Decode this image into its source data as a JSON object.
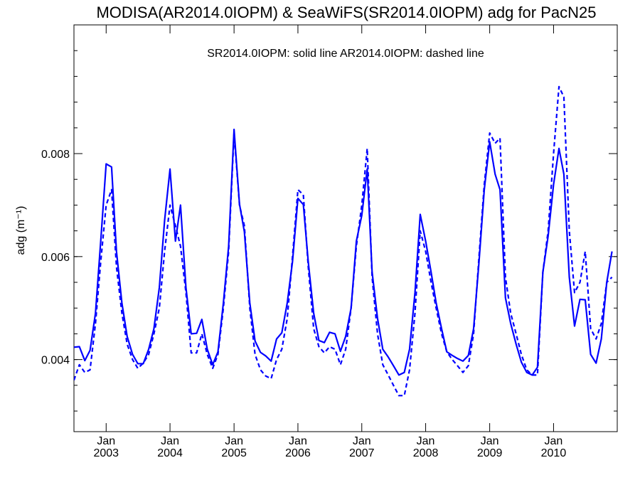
{
  "chart_data": {
    "type": "line",
    "title": "MODISA(AR2014.0IOPM) & SeaWiFS(SR2014.0IOPM)  adg for PacN25",
    "annotation": "SR2014.0IOPM: solid line   AR2014.0IOPM: dashed line",
    "ylabel": "adg (m⁻¹)",
    "xlabel": "",
    "xlim": [
      "2002-07-01",
      "2010-12-31"
    ],
    "ylim": [
      0.0026,
      0.0105
    ],
    "y_ticks": [
      {
        "value": 0.004,
        "label": "0.004"
      },
      {
        "value": 0.006,
        "label": "0.006"
      },
      {
        "value": 0.008,
        "label": "0.008"
      }
    ],
    "x_ticks": [
      {
        "date": "2003-01-01",
        "month": "Jan",
        "year": "2003"
      },
      {
        "date": "2004-01-01",
        "month": "Jan",
        "year": "2004"
      },
      {
        "date": "2005-01-01",
        "month": "Jan",
        "year": "2005"
      },
      {
        "date": "2006-01-01",
        "month": "Jan",
        "year": "2006"
      },
      {
        "date": "2007-01-01",
        "month": "Jan",
        "year": "2007"
      },
      {
        "date": "2008-01-01",
        "month": "Jan",
        "year": "2008"
      },
      {
        "date": "2009-01-01",
        "month": "Jan",
        "year": "2009"
      },
      {
        "date": "2010-01-01",
        "month": "Jan",
        "year": "2010"
      }
    ],
    "grid": false,
    "series": [
      {
        "name": "SR2014.0IOPM",
        "style": "solid",
        "color": "#0000ff",
        "points": [
          [
            "2002-07-01",
            0.00424
          ],
          [
            "2002-08-01",
            0.00425
          ],
          [
            "2002-09-01",
            0.00398
          ],
          [
            "2002-10-01",
            0.00418
          ],
          [
            "2002-11-01",
            0.0049
          ],
          [
            "2002-12-01",
            0.0063
          ],
          [
            "2003-01-01",
            0.0078
          ],
          [
            "2003-02-01",
            0.00774
          ],
          [
            "2003-03-01",
            0.0061
          ],
          [
            "2003-04-01",
            0.0051
          ],
          [
            "2003-05-01",
            0.00445
          ],
          [
            "2003-06-01",
            0.0041
          ],
          [
            "2003-07-01",
            0.00392
          ],
          [
            "2003-08-01",
            0.00392
          ],
          [
            "2003-09-01",
            0.0042
          ],
          [
            "2003-10-01",
            0.0046
          ],
          [
            "2003-11-01",
            0.0054
          ],
          [
            "2003-12-01",
            0.0067
          ],
          [
            "2004-01-01",
            0.0077
          ],
          [
            "2004-02-01",
            0.0063
          ],
          [
            "2004-03-01",
            0.007
          ],
          [
            "2004-04-01",
            0.0054
          ],
          [
            "2004-05-01",
            0.0045
          ],
          [
            "2004-06-01",
            0.00451
          ],
          [
            "2004-07-01",
            0.00478
          ],
          [
            "2004-08-01",
            0.0042
          ],
          [
            "2004-09-01",
            0.0039
          ],
          [
            "2004-10-01",
            0.00415
          ],
          [
            "2004-11-01",
            0.0051
          ],
          [
            "2004-12-01",
            0.0062
          ],
          [
            "2005-01-01",
            0.00847
          ],
          [
            "2005-02-01",
            0.00702
          ],
          [
            "2005-03-01",
            0.00648
          ],
          [
            "2005-04-01",
            0.0051
          ],
          [
            "2005-05-01",
            0.00436
          ],
          [
            "2005-06-01",
            0.00414
          ],
          [
            "2005-07-01",
            0.00407
          ],
          [
            "2005-08-01",
            0.00397
          ],
          [
            "2005-09-01",
            0.0044
          ],
          [
            "2005-10-01",
            0.00452
          ],
          [
            "2005-11-01",
            0.0051
          ],
          [
            "2005-12-01",
            0.0059
          ],
          [
            "2006-01-01",
            0.00713
          ],
          [
            "2006-02-01",
            0.00701
          ],
          [
            "2006-03-01",
            0.0059
          ],
          [
            "2006-04-01",
            0.0049
          ],
          [
            "2006-05-01",
            0.00437
          ],
          [
            "2006-06-01",
            0.00433
          ],
          [
            "2006-07-01",
            0.00453
          ],
          [
            "2006-08-01",
            0.0045
          ],
          [
            "2006-09-01",
            0.00416
          ],
          [
            "2006-10-01",
            0.00445
          ],
          [
            "2006-11-01",
            0.005
          ],
          [
            "2006-12-01",
            0.0063
          ],
          [
            "2007-01-01",
            0.0068
          ],
          [
            "2007-02-01",
            0.0077
          ],
          [
            "2007-03-01",
            0.0057
          ],
          [
            "2007-04-01",
            0.0048
          ],
          [
            "2007-05-01",
            0.0042
          ],
          [
            "2007-06-01",
            0.00405
          ],
          [
            "2007-07-01",
            0.00388
          ],
          [
            "2007-08-01",
            0.0037
          ],
          [
            "2007-09-01",
            0.00375
          ],
          [
            "2007-10-01",
            0.0042
          ],
          [
            "2007-11-01",
            0.0053
          ],
          [
            "2007-12-01",
            0.00682
          ],
          [
            "2008-01-01",
            0.0063
          ],
          [
            "2008-02-01",
            0.0057
          ],
          [
            "2008-03-01",
            0.0051
          ],
          [
            "2008-04-01",
            0.0046
          ],
          [
            "2008-05-01",
            0.00415
          ],
          [
            "2008-06-01",
            0.00408
          ],
          [
            "2008-07-01",
            0.00402
          ],
          [
            "2008-08-01",
            0.00397
          ],
          [
            "2008-09-01",
            0.00408
          ],
          [
            "2008-10-01",
            0.0046
          ],
          [
            "2008-11-01",
            0.0059
          ],
          [
            "2008-12-01",
            0.0073
          ],
          [
            "2009-01-01",
            0.00823
          ],
          [
            "2009-02-01",
            0.0076
          ],
          [
            "2009-03-01",
            0.0073
          ],
          [
            "2009-04-01",
            0.0052
          ],
          [
            "2009-05-01",
            0.0047
          ],
          [
            "2009-06-01",
            0.0043
          ],
          [
            "2009-07-01",
            0.00395
          ],
          [
            "2009-08-01",
            0.00375
          ],
          [
            "2009-09-01",
            0.0037
          ],
          [
            "2009-10-01",
            0.00385
          ],
          [
            "2009-11-01",
            0.0057
          ],
          [
            "2009-12-01",
            0.0064
          ],
          [
            "2010-01-01",
            0.0074
          ],
          [
            "2010-02-01",
            0.0081
          ],
          [
            "2010-03-01",
            0.0076
          ],
          [
            "2010-04-01",
            0.0056
          ],
          [
            "2010-05-01",
            0.00465
          ],
          [
            "2010-06-01",
            0.00517
          ],
          [
            "2010-07-01",
            0.00516
          ],
          [
            "2010-08-01",
            0.0041
          ],
          [
            "2010-09-01",
            0.00393
          ],
          [
            "2010-10-01",
            0.0044
          ],
          [
            "2010-11-01",
            0.0055
          ],
          [
            "2010-12-01",
            0.0061
          ]
        ]
      },
      {
        "name": "AR2014.0IOPM",
        "style": "dashed",
        "color": "#0000ff",
        "points": [
          [
            "2002-07-01",
            0.0036
          ],
          [
            "2002-08-01",
            0.0039
          ],
          [
            "2002-09-01",
            0.00375
          ],
          [
            "2002-10-01",
            0.0038
          ],
          [
            "2002-11-01",
            0.0047
          ],
          [
            "2002-12-01",
            0.0059
          ],
          [
            "2003-01-01",
            0.007
          ],
          [
            "2003-02-01",
            0.0073
          ],
          [
            "2003-03-01",
            0.0058
          ],
          [
            "2003-04-01",
            0.0049
          ],
          [
            "2003-05-01",
            0.0043
          ],
          [
            "2003-06-01",
            0.004
          ],
          [
            "2003-07-01",
            0.00383
          ],
          [
            "2003-08-01",
            0.00393
          ],
          [
            "2003-09-01",
            0.0041
          ],
          [
            "2003-10-01",
            0.0045
          ],
          [
            "2003-11-01",
            0.005
          ],
          [
            "2003-12-01",
            0.0061
          ],
          [
            "2004-01-01",
            0.007
          ],
          [
            "2004-02-01",
            0.0066
          ],
          [
            "2004-03-01",
            0.0062
          ],
          [
            "2004-04-01",
            0.0053
          ],
          [
            "2004-05-01",
            0.00413
          ],
          [
            "2004-06-01",
            0.00413
          ],
          [
            "2004-07-01",
            0.0045
          ],
          [
            "2004-08-01",
            0.0041
          ],
          [
            "2004-09-01",
            0.00383
          ],
          [
            "2004-10-01",
            0.0041
          ],
          [
            "2004-11-01",
            0.005
          ],
          [
            "2004-12-01",
            0.0061
          ],
          [
            "2005-01-01",
            0.0084
          ],
          [
            "2005-02-01",
            0.007
          ],
          [
            "2005-03-01",
            0.0066
          ],
          [
            "2005-04-01",
            0.005
          ],
          [
            "2005-05-01",
            0.0041
          ],
          [
            "2005-06-01",
            0.0038
          ],
          [
            "2005-07-01",
            0.00368
          ],
          [
            "2005-08-01",
            0.00363
          ],
          [
            "2005-09-01",
            0.004
          ],
          [
            "2005-10-01",
            0.0042
          ],
          [
            "2005-11-01",
            0.0048
          ],
          [
            "2005-12-01",
            0.006
          ],
          [
            "2006-01-01",
            0.0073
          ],
          [
            "2006-02-01",
            0.0072
          ],
          [
            "2006-03-01",
            0.0058
          ],
          [
            "2006-04-01",
            0.0046
          ],
          [
            "2006-05-01",
            0.00425
          ],
          [
            "2006-06-01",
            0.00413
          ],
          [
            "2006-07-01",
            0.00425
          ],
          [
            "2006-08-01",
            0.0042
          ],
          [
            "2006-09-01",
            0.0039
          ],
          [
            "2006-10-01",
            0.0042
          ],
          [
            "2006-11-01",
            0.005
          ],
          [
            "2006-12-01",
            0.0062
          ],
          [
            "2007-01-01",
            0.007
          ],
          [
            "2007-02-01",
            0.0081
          ],
          [
            "2007-03-01",
            0.0056
          ],
          [
            "2007-04-01",
            0.0045
          ],
          [
            "2007-05-01",
            0.0039
          ],
          [
            "2007-06-01",
            0.0037
          ],
          [
            "2007-07-01",
            0.0035
          ],
          [
            "2007-08-01",
            0.0033
          ],
          [
            "2007-09-01",
            0.0033
          ],
          [
            "2007-10-01",
            0.0038
          ],
          [
            "2007-11-01",
            0.0049
          ],
          [
            "2007-12-01",
            0.0065
          ],
          [
            "2008-01-01",
            0.0061
          ],
          [
            "2008-02-01",
            0.0055
          ],
          [
            "2008-03-01",
            0.005
          ],
          [
            "2008-04-01",
            0.0045
          ],
          [
            "2008-05-01",
            0.00415
          ],
          [
            "2008-06-01",
            0.004
          ],
          [
            "2008-07-01",
            0.00388
          ],
          [
            "2008-08-01",
            0.00375
          ],
          [
            "2008-09-01",
            0.00388
          ],
          [
            "2008-10-01",
            0.0045
          ],
          [
            "2008-11-01",
            0.006
          ],
          [
            "2008-12-01",
            0.0074
          ],
          [
            "2009-01-01",
            0.0084
          ],
          [
            "2009-02-01",
            0.0082
          ],
          [
            "2009-03-01",
            0.0083
          ],
          [
            "2009-04-01",
            0.0056
          ],
          [
            "2009-05-01",
            0.0049
          ],
          [
            "2009-06-01",
            0.0045
          ],
          [
            "2009-07-01",
            0.0041
          ],
          [
            "2009-08-01",
            0.0038
          ],
          [
            "2009-09-01",
            0.0037
          ],
          [
            "2009-10-01",
            0.0037
          ],
          [
            "2009-11-01",
            0.0057
          ],
          [
            "2009-12-01",
            0.0065
          ],
          [
            "2010-01-01",
            0.008
          ],
          [
            "2010-02-01",
            0.0093
          ],
          [
            "2010-03-01",
            0.0091
          ],
          [
            "2010-04-01",
            0.0065
          ],
          [
            "2010-05-01",
            0.0053
          ],
          [
            "2010-06-01",
            0.0055
          ],
          [
            "2010-07-01",
            0.0061
          ],
          [
            "2010-08-01",
            0.0046
          ],
          [
            "2010-09-01",
            0.0044
          ],
          [
            "2010-10-01",
            0.0047
          ],
          [
            "2010-11-01",
            0.0055
          ],
          [
            "2010-12-01",
            0.0056
          ]
        ]
      }
    ]
  }
}
